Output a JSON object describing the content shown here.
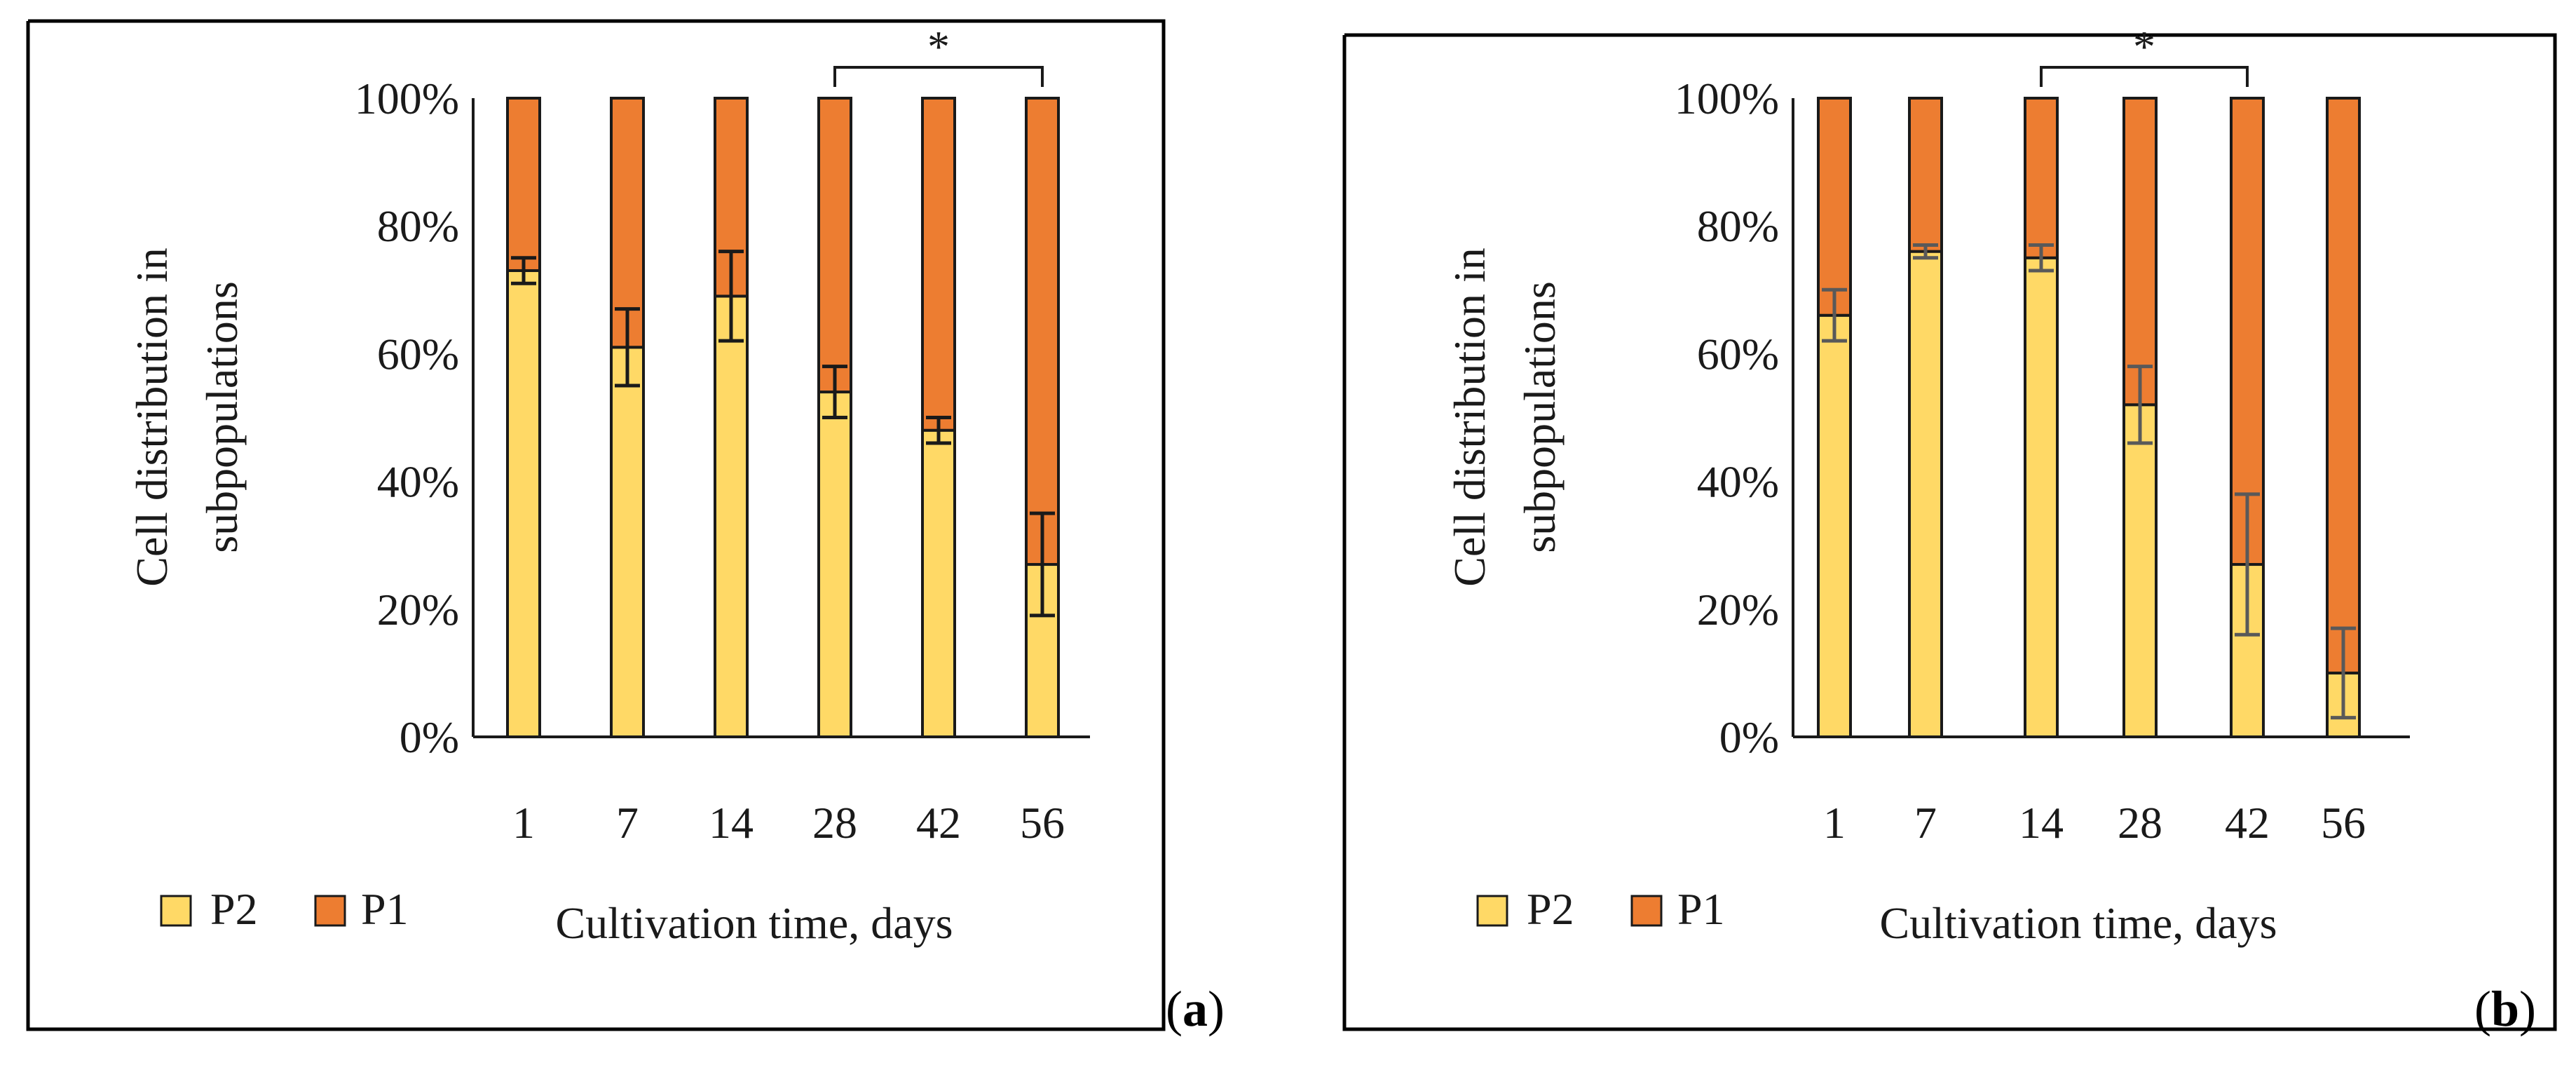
{
  "colors": {
    "p2": "#FFD966",
    "p1": "#ED7D31",
    "frame": "#000000",
    "bar_stroke": "#1a1a1a"
  },
  "chart_data": [
    {
      "type": "bar",
      "stacked": true,
      "panel_label": {
        "open": "(",
        "letter": "a",
        "close": ")"
      },
      "categories": [
        "1",
        "7",
        "14",
        "28",
        "42",
        "56"
      ],
      "series": [
        {
          "name": "P2",
          "values": [
            73,
            61,
            69,
            54,
            48,
            27
          ],
          "error": [
            2,
            6,
            7,
            4,
            2,
            8
          ]
        },
        {
          "name": "P1",
          "values": [
            27,
            39,
            31,
            46,
            52,
            73
          ]
        }
      ],
      "error_color": "#1a1a1a",
      "ylabel_lines": [
        "Cell distribution in",
        "subpopulations"
      ],
      "xlabel": "Cultivation time, days",
      "y_ticks": [
        "0%",
        "20%",
        "40%",
        "60%",
        "80%",
        "100%"
      ],
      "ylim": [
        0,
        100
      ],
      "significance": {
        "from": "28",
        "to": "56",
        "label": "*"
      },
      "legend": [
        "P2",
        "P1"
      ]
    },
    {
      "type": "bar",
      "stacked": true,
      "panel_label": {
        "open": "(",
        "letter": "b",
        "close": ")"
      },
      "categories": [
        "1",
        "7",
        "14",
        "28",
        "42",
        "56"
      ],
      "series": [
        {
          "name": "P2",
          "values": [
            66,
            76,
            75,
            52,
            27,
            10
          ],
          "error": [
            4,
            1,
            2,
            6,
            11,
            7
          ]
        },
        {
          "name": "P1",
          "values": [
            34,
            24,
            25,
            48,
            73,
            90
          ]
        }
      ],
      "error_color": "#595959",
      "ylabel_lines": [
        "Cell distribution in",
        "subpopulations"
      ],
      "xlabel": "Cultivation time, days",
      "y_ticks": [
        "0%",
        "20%",
        "40%",
        "60%",
        "80%",
        "100%"
      ],
      "ylim": [
        0,
        100
      ],
      "significance": {
        "from": "14",
        "to": "42",
        "label": "*"
      },
      "legend": [
        "P2",
        "P1"
      ]
    }
  ]
}
